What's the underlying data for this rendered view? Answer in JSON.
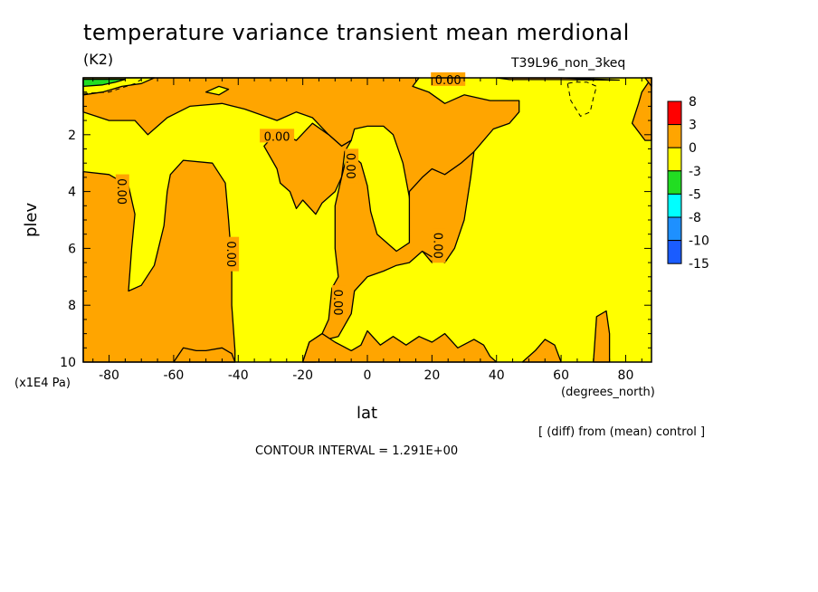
{
  "header": {
    "title": "temperature variance transient mean merdional",
    "units": "(K2)",
    "experiment": "T39L96_non_3keq"
  },
  "footer": {
    "diff_note": "[ (diff) from (mean) control ]",
    "contour_interval": "CONTOUR INTERVAL = 1.291E+00"
  },
  "colors": {
    "yellow": "#ffff00",
    "orange": "#ffa500",
    "green": "#22dd22",
    "red": "#ff0000",
    "cyan": "#00ffff",
    "lightblue": "#1e90ff",
    "blue": "#1a5cff"
  },
  "chart_data": {
    "type": "heatmap",
    "title": "temperature variance transient mean merdional",
    "xlabel": "lat",
    "ylabel": "plev",
    "x_units": "(degrees_north)",
    "y_units": "(x1E4 Pa)",
    "xlim": [
      -88,
      88
    ],
    "ylim": [
      10,
      0
    ],
    "x_ticks": [
      -80,
      -60,
      -40,
      -20,
      0,
      20,
      40,
      60,
      80
    ],
    "x_tick_labels": [
      "-80",
      "-60",
      "-40",
      "-20",
      "0",
      "20",
      "40",
      "60",
      "80"
    ],
    "y_ticks": [
      2,
      4,
      6,
      8,
      10
    ],
    "y_tick_labels": [
      "2",
      "4",
      "6",
      "8",
      "10"
    ],
    "contour_labels": [
      "0.00",
      "0.00",
      "0.00",
      "0.00",
      "0.00",
      "0.00",
      "0.00"
    ],
    "colorbar": {
      "labels": [
        "8",
        "3",
        "0",
        "-3",
        "-5",
        "-8",
        "-10",
        "-15"
      ],
      "colors": [
        "#ff0000",
        "#ffa500",
        "#ffff00",
        "#22dd22",
        "#00ffff",
        "#1e90ff",
        "#1a5cff"
      ]
    },
    "regions": [
      {
        "name": "orange-band-sh",
        "value_range": [
          0,
          3
        ],
        "polygon": [
          [
            -88,
            1.2
          ],
          [
            -80,
            1.5
          ],
          [
            -72,
            1.5
          ],
          [
            -68,
            2.0
          ],
          [
            -62,
            1.4
          ],
          [
            -55,
            1.0
          ],
          [
            -45,
            0.9
          ],
          [
            -38,
            1.1
          ],
          [
            -28,
            1.5
          ],
          [
            -22,
            1.2
          ],
          [
            -17,
            1.4
          ],
          [
            -12,
            2.0
          ],
          [
            -8,
            2.4
          ],
          [
            -5,
            2.2
          ],
          [
            -4,
            1.8
          ],
          [
            0,
            1.7
          ],
          [
            5,
            1.7
          ],
          [
            8,
            2.0
          ],
          [
            11,
            3.0
          ],
          [
            13,
            4.2
          ],
          [
            14,
            5.2
          ],
          [
            17,
            6.1
          ],
          [
            20,
            6.5
          ],
          [
            26,
            3.5
          ],
          [
            30,
            3.0
          ],
          [
            33,
            2.6
          ],
          [
            39,
            1.8
          ],
          [
            44,
            1.6
          ],
          [
            47,
            1.2
          ],
          [
            47,
            0.8
          ],
          [
            38,
            0.8
          ],
          [
            30,
            0.6
          ],
          [
            24,
            0.9
          ],
          [
            19,
            0.5
          ],
          [
            14,
            0.3
          ],
          [
            16,
            0.0
          ],
          [
            -50,
            0.0
          ],
          [
            -88,
            0.0
          ]
        ]
      },
      {
        "name": "orange-tongue-left",
        "value_range": [
          0,
          3
        ],
        "polygon": [
          [
            -88,
            3.3
          ],
          [
            -80,
            3.4
          ],
          [
            -74,
            3.8
          ],
          [
            -72,
            4.8
          ],
          [
            -73,
            6.0
          ],
          [
            -74,
            7.5
          ],
          [
            -70,
            7.3
          ],
          [
            -66,
            6.6
          ],
          [
            -63,
            5.2
          ],
          [
            -62,
            4.0
          ],
          [
            -61,
            3.4
          ],
          [
            -57,
            2.9
          ],
          [
            -48,
            3.0
          ],
          [
            -44,
            3.7
          ],
          [
            -43,
            5.0
          ],
          [
            -42,
            6.5
          ],
          [
            -42,
            8.0
          ],
          [
            -41,
            9.6
          ],
          [
            -41,
            10
          ],
          [
            -88,
            10
          ]
        ]
      },
      {
        "name": "orange-tongue-mid",
        "value_range": [
          0,
          3
        ],
        "polygon": [
          [
            -24,
            4.0
          ],
          [
            -22,
            4.6
          ],
          [
            -20,
            4.3
          ],
          [
            -16,
            4.8
          ],
          [
            -14,
            4.4
          ],
          [
            -10,
            4.0
          ],
          [
            -8,
            3.5
          ],
          [
            -7,
            2.6
          ],
          [
            -5,
            2.2
          ],
          [
            -8,
            2.4
          ],
          [
            -12,
            2.0
          ],
          [
            -17,
            1.6
          ],
          [
            -22,
            2.2
          ],
          [
            -28,
            1.9
          ],
          [
            -32,
            2.4
          ],
          [
            -28,
            3.2
          ],
          [
            -27,
            3.7
          ]
        ]
      },
      {
        "name": "orange-tongue-right",
        "value_range": [
          0,
          3
        ],
        "polygon": [
          [
            -16,
            9.3
          ],
          [
            -9,
            9.1
          ],
          [
            -5,
            8.3
          ],
          [
            -4,
            7.5
          ],
          [
            0,
            7.0
          ],
          [
            5,
            6.8
          ],
          [
            9,
            6.6
          ],
          [
            13,
            6.5
          ],
          [
            17,
            6.1
          ],
          [
            20,
            6.3
          ],
          [
            24,
            6.5
          ],
          [
            27,
            6.0
          ],
          [
            30,
            5.0
          ],
          [
            32,
            3.5
          ],
          [
            33,
            2.6
          ],
          [
            29,
            3.0
          ],
          [
            24,
            3.4
          ],
          [
            20,
            3.2
          ],
          [
            17,
            3.5
          ],
          [
            13,
            4.0
          ],
          [
            13,
            5.8
          ],
          [
            9,
            6.1
          ],
          [
            3,
            5.5
          ],
          [
            1,
            4.7
          ],
          [
            0,
            3.8
          ],
          [
            -2,
            3.0
          ],
          [
            -6,
            2.6
          ],
          [
            -8,
            3.5
          ],
          [
            -10,
            4.5
          ],
          [
            -10,
            6.0
          ],
          [
            -9,
            7.0
          ],
          [
            -11,
            7.4
          ],
          [
            -12,
            8.5
          ],
          [
            -14,
            9.0
          ],
          [
            -18,
            9.3
          ],
          [
            -20,
            10
          ],
          [
            -16,
            10
          ]
        ]
      },
      {
        "name": "orange-bottom-right",
        "value_range": [
          0,
          3
        ],
        "polygon": [
          [
            -20,
            10
          ],
          [
            -18,
            9.3
          ],
          [
            -14,
            9.0
          ],
          [
            -10,
            9.3
          ],
          [
            -5,
            9.6
          ],
          [
            -2,
            9.4
          ],
          [
            0,
            8.9
          ],
          [
            4,
            9.4
          ],
          [
            8,
            9.1
          ],
          [
            12,
            9.4
          ],
          [
            16,
            9.1
          ],
          [
            20,
            9.3
          ],
          [
            24,
            9.0
          ],
          [
            28,
            9.5
          ],
          [
            33,
            9.2
          ],
          [
            36,
            9.4
          ],
          [
            38,
            9.8
          ],
          [
            40,
            10
          ]
        ]
      },
      {
        "name": "orange-patch-55",
        "value_range": [
          0,
          3
        ],
        "polygon": [
          [
            48,
            10
          ],
          [
            52,
            9.6
          ],
          [
            55,
            9.2
          ],
          [
            58,
            9.4
          ],
          [
            60,
            10
          ]
        ]
      },
      {
        "name": "orange-patch-75",
        "value_range": [
          0,
          3
        ],
        "polygon": [
          [
            70,
            10
          ],
          [
            71,
            8.4
          ],
          [
            74,
            8.2
          ],
          [
            75,
            9.0
          ],
          [
            75,
            10
          ]
        ]
      },
      {
        "name": "orange-patch-sh-bottom",
        "value_range": [
          0,
          3
        ],
        "polygon": [
          [
            -60,
            10
          ],
          [
            -57,
            9.5
          ],
          [
            -53,
            9.6
          ],
          [
            -50,
            9.6
          ],
          [
            -45,
            9.5
          ],
          [
            -42,
            9.7
          ],
          [
            -41,
            10
          ]
        ]
      },
      {
        "name": "orange-patch-np-top",
        "value_range": [
          0,
          3
        ],
        "polygon": [
          [
            82,
            1.6
          ],
          [
            84,
            0.9
          ],
          [
            85,
            0.5
          ],
          [
            88,
            0.0
          ],
          [
            88,
            2.2
          ],
          [
            86,
            2.2
          ]
        ]
      },
      {
        "name": "orange-patch-np-right",
        "value_range": [
          0,
          3
        ],
        "polygon": [
          [
            88,
            0.3
          ],
          [
            86,
            0.0
          ],
          [
            88,
            0.0
          ]
        ]
      },
      {
        "name": "yellow-hole-47",
        "value_range": [
          -3,
          0
        ],
        "polygon": [
          [
            -46,
            0.3
          ],
          [
            -50,
            0.5
          ],
          [
            -46,
            0.6
          ],
          [
            -43,
            0.4
          ]
        ]
      },
      {
        "name": "yellow-hole-top-left",
        "value_range": [
          -3,
          0
        ],
        "polygon": [
          [
            -88,
            0.1
          ],
          [
            -88,
            0.6
          ],
          [
            -82,
            0.5
          ],
          [
            -76,
            0.3
          ],
          [
            -70,
            0.2
          ],
          [
            -66,
            0.0
          ],
          [
            -88,
            0.0
          ]
        ]
      },
      {
        "name": "green-top-left",
        "value_range": [
          -5,
          -3
        ],
        "polygon": [
          [
            -88,
            0.05
          ],
          [
            -88,
            0.3
          ],
          [
            -82,
            0.25
          ],
          [
            -78,
            0.15
          ],
          [
            -75,
            0.05
          ]
        ]
      },
      {
        "name": "orange-top-right-edge",
        "value_range": [
          0,
          3
        ],
        "polygon": [
          [
            40,
            0.0
          ],
          [
            60,
            0.0
          ],
          [
            78,
            0.08
          ],
          [
            60,
            0.06
          ],
          [
            44,
            0.06
          ]
        ]
      }
    ],
    "dashed_contours": [
      [
        [
          -88,
          0.55
        ],
        [
          -80,
          0.5
        ],
        [
          -76,
          0.35
        ],
        [
          -72,
          0.2
        ],
        [
          -70,
          0.05
        ]
      ],
      [
        [
          62,
          0.2
        ],
        [
          63,
          0.8
        ],
        [
          66,
          1.35
        ],
        [
          69,
          1.2
        ],
        [
          70,
          0.7
        ],
        [
          71,
          0.3
        ],
        [
          68,
          0.15
        ],
        [
          64,
          0.15
        ],
        [
          62,
          0.2
        ]
      ]
    ]
  }
}
